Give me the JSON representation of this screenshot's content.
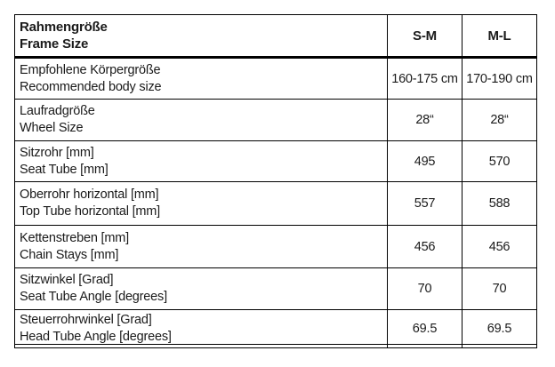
{
  "chart_data": {
    "type": "table",
    "header": {
      "label_de": "Rahmengröße",
      "label_en": "Frame Size",
      "columns": [
        "S-M",
        "M-L"
      ]
    },
    "rows": [
      {
        "label_de": "Empfohlene Körpergröße",
        "label_en": "Recommended body size",
        "values": [
          "160-175 cm",
          "170-190 cm"
        ]
      },
      {
        "label_de": "Laufradgröße",
        "label_en": "Wheel Size",
        "values": [
          "28“",
          "28“"
        ]
      },
      {
        "label_de": "Sitzrohr [mm]",
        "label_en": "Seat Tube [mm]",
        "values": [
          "495",
          "570"
        ]
      },
      {
        "label_de": "Oberrohr horizontal [mm]",
        "label_en": "Top Tube horizontal [mm]",
        "values": [
          "557",
          "588"
        ]
      },
      {
        "label_de": "Kettenstreben [mm]",
        "label_en": "Chain Stays [mm]",
        "values": [
          "456",
          "456"
        ]
      },
      {
        "label_de": "Sitzwinkel [Grad]",
        "label_en": "Seat Tube Angle [degrees]",
        "values": [
          "70",
          "70"
        ]
      },
      {
        "label_de": "Steuerrohrwinkel [Grad]",
        "label_en": "Head Tube Angle [degrees]",
        "values": [
          "69.5",
          "69.5"
        ]
      }
    ]
  },
  "colors": {
    "border": "#000000",
    "text": "#1a1a1a",
    "background": "#ffffff"
  }
}
